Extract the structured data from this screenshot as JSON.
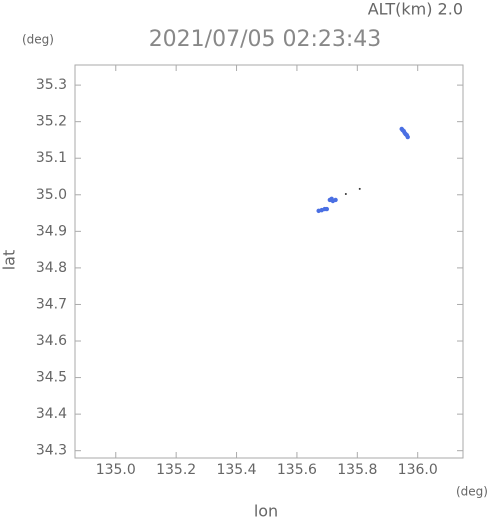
{
  "chart_data": {
    "type": "scatter",
    "title": "2021/07/05 02:23:43",
    "subtitle": "ALT(km) 2.0",
    "xlabel": "lon",
    "ylabel": "lat",
    "xunit": "(deg)",
    "yunit": "(deg)",
    "xlim": [
      134.865,
      136.15
    ],
    "ylim": [
      34.28,
      35.355
    ],
    "xticks": [
      {
        "value": 135,
        "label": "135.0"
      },
      135.2,
      135.4,
      135.6,
      135.8,
      {
        "value": 136,
        "label": "136.0"
      }
    ],
    "yticks": [
      34.3,
      34.4,
      34.5,
      34.6,
      34.7,
      34.8,
      34.9,
      {
        "value": 35,
        "label": "35.0"
      },
      35.1,
      35.2,
      35.3
    ],
    "series": [
      {
        "color": "#4a6fe3",
        "x": [
          135.947,
          135.954,
          135.957,
          135.964,
          135.967,
          135.96,
          135.95,
          135.709,
          135.719,
          135.728,
          135.715,
          135.672,
          135.682,
          135.692,
          135.699
        ],
        "y": [
          35.18,
          35.174,
          35.169,
          35.163,
          35.158,
          35.166,
          35.177,
          34.986,
          34.983,
          34.986,
          34.989,
          34.956,
          34.958,
          34.961,
          34.961
        ]
      },
      {
        "color": "#333333",
        "x": [
          135.762,
          135.808
        ],
        "y": [
          35.002,
          35.016
        ]
      }
    ]
  }
}
